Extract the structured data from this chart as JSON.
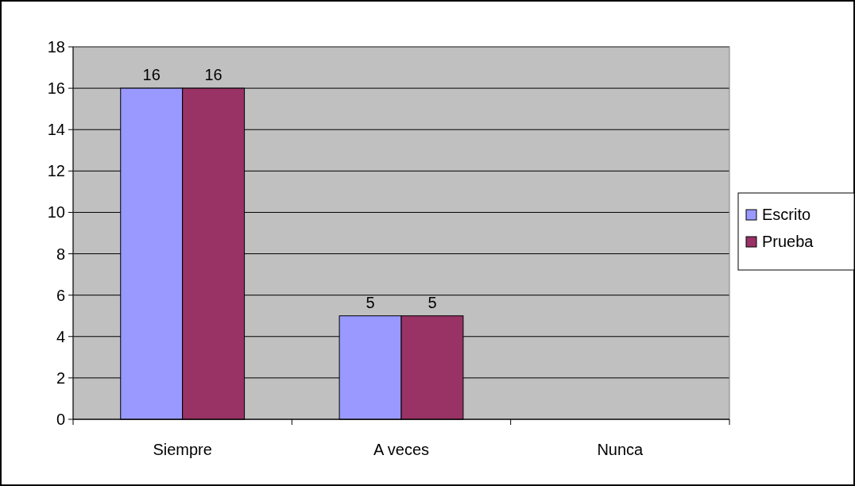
{
  "chart_data": {
    "type": "bar",
    "categories": [
      "Siempre",
      "A veces",
      "Nunca"
    ],
    "series": [
      {
        "name": "Escrito",
        "color": "#9999ff",
        "values": [
          16,
          5,
          0
        ],
        "value_labels": [
          "16",
          "5",
          null
        ]
      },
      {
        "name": "Prueba",
        "color": "#993366",
        "values": [
          16,
          5,
          0
        ],
        "value_labels": [
          "16",
          "5",
          null
        ]
      }
    ],
    "ylim": [
      0,
      18
    ],
    "yticks": [
      0,
      2,
      4,
      6,
      8,
      10,
      12,
      14,
      16,
      18
    ],
    "grid": "y",
    "legend": "right"
  }
}
